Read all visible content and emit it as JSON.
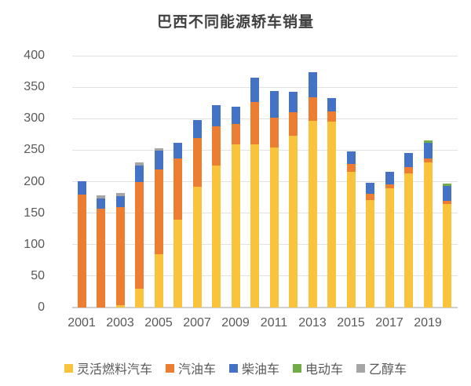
{
  "title": "巴西不同能源轿车销量",
  "chart_data": {
    "type": "bar",
    "stacked": true,
    "title": "巴西不同能源轿车销量",
    "categories": [
      2001,
      2002,
      2003,
      2004,
      2005,
      2006,
      2007,
      2008,
      2009,
      2010,
      2011,
      2012,
      2013,
      2014,
      2015,
      2016,
      2017,
      2018,
      2019,
      2020
    ],
    "x_tick_labels": [
      "2001",
      "2003",
      "2005",
      "2007",
      "2009",
      "2011",
      "2013",
      "2015",
      "2017",
      "2019"
    ],
    "y_ticks": [
      0,
      50,
      100,
      150,
      200,
      250,
      300,
      350,
      400
    ],
    "ylim": [
      0,
      400
    ],
    "grid": true,
    "legend_position": "bottom",
    "series": [
      {
        "name": "灵活燃料汽车",
        "color": "#F9C33C",
        "values": [
          0,
          0,
          4,
          30,
          85,
          139,
          192,
          225,
          259,
          259,
          254,
          273,
          296,
          295,
          216,
          171,
          189,
          213,
          230,
          164
        ]
      },
      {
        "name": "汽油车",
        "color": "#ED7D31",
        "values": [
          180,
          157,
          156,
          170,
          134,
          98,
          77,
          63,
          33,
          68,
          47,
          37,
          38,
          16,
          12,
          10,
          7,
          10,
          7,
          6
        ]
      },
      {
        "name": "柴油车",
        "color": "#4472C4",
        "values": [
          21,
          16,
          17,
          26,
          30,
          25,
          29,
          34,
          27,
          38,
          43,
          33,
          40,
          22,
          20,
          17,
          20,
          23,
          25,
          23
        ]
      },
      {
        "name": "电动车",
        "color": "#70AD47",
        "values": [
          0,
          0,
          0,
          0,
          0,
          0,
          0,
          0,
          0,
          0,
          0,
          0,
          0,
          0,
          0,
          0,
          0,
          0,
          4,
          4
        ]
      },
      {
        "name": "乙醇车",
        "color": "#A5A5A5",
        "values": [
          0,
          5,
          5,
          5,
          4,
          0,
          0,
          0,
          0,
          0,
          0,
          0,
          0,
          0,
          0,
          0,
          0,
          0,
          0,
          0
        ]
      }
    ]
  }
}
